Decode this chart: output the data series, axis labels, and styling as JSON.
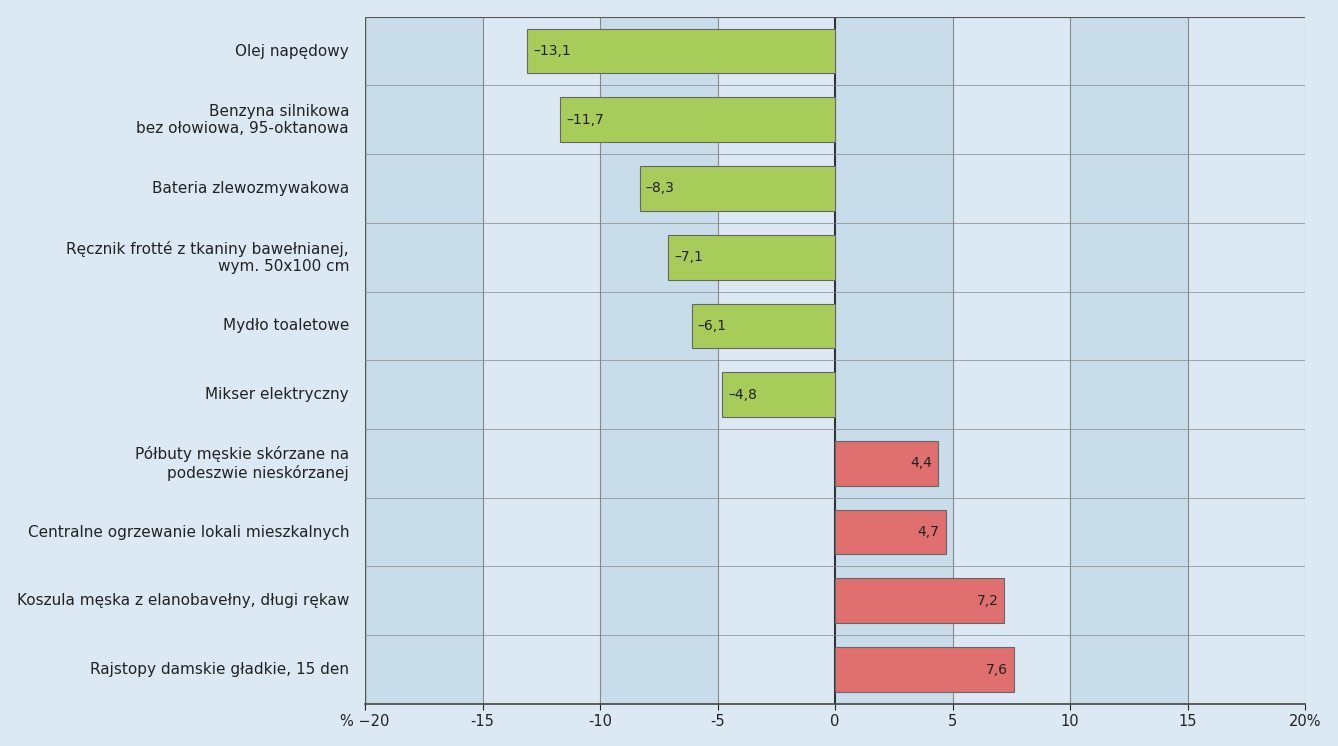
{
  "categories": [
    "Olej napędowy",
    "Benzyna silnikowa\nbez ołowiowa, 95-oktanowa",
    "Bateria zlewozmywakowa",
    "Ręcznik frotté z tkaniny bawełnianej,\nwym. 50x100 cm",
    "Mydło toaletowe",
    "Mikser elektryczny",
    "Półbuty męskie skórzane na\npodeszwie nieskórzanej",
    "Centralne ogrzewanie lokali mieszkalnych",
    "Koszula męska z elanobavełny, długi rękaw",
    "Rajstopy damskie gładkie, 15 den"
  ],
  "values": [
    -13.1,
    -11.7,
    -8.3,
    -7.1,
    -6.1,
    -4.8,
    4.4,
    4.7,
    7.2,
    7.6
  ],
  "bar_colors_positive": "#e07070",
  "bar_colors_negative": "#a8cc5a",
  "bar_edge_color": "#666666",
  "background_color": "#dce9f5",
  "col_stripe_color": "#c8dcea",
  "grid_line_color": "#555555",
  "text_color": "#222222",
  "xlim": [
    -20,
    20
  ],
  "xticks": [
    -20,
    -15,
    -10,
    -5,
    0,
    5,
    10,
    15,
    20
  ],
  "label_fontsize": 11,
  "tick_fontsize": 10.5,
  "value_label_fontsize": 10
}
